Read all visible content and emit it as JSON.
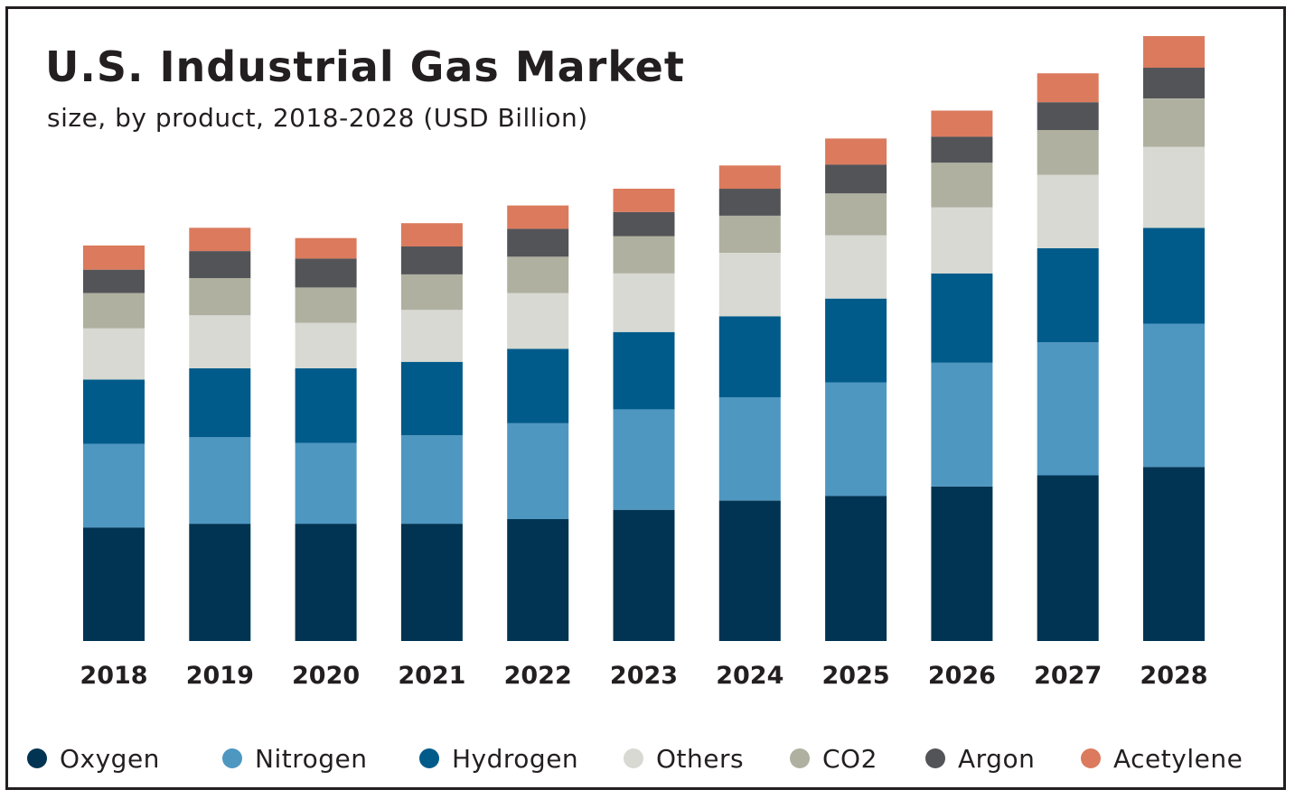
{
  "chart_data": {
    "type": "bar",
    "stacked": true,
    "title": "U.S. Industrial Gas Market",
    "subtitle": "size, by product, 2018-2028 (USD Billion)",
    "categories": [
      "2018",
      "2019",
      "2020",
      "2021",
      "2022",
      "2023",
      "2024",
      "2025",
      "2026",
      "2027",
      "2028"
    ],
    "series": [
      {
        "name": "Oxygen",
        "color": "#003452",
        "values": [
          12.2,
          12.6,
          12.6,
          12.6,
          13.1,
          14.1,
          15.1,
          15.6,
          16.6,
          17.8,
          18.7
        ]
      },
      {
        "name": "Nitrogen",
        "color": "#4e97c1",
        "values": [
          9.0,
          9.3,
          8.7,
          9.5,
          10.3,
          10.8,
          11.1,
          12.2,
          13.3,
          14.3,
          15.4
        ]
      },
      {
        "name": "Hydrogen",
        "color": "#005b8a",
        "values": [
          6.9,
          7.4,
          8.0,
          7.9,
          8.0,
          8.3,
          8.7,
          9.0,
          9.6,
          10.1,
          10.3
        ]
      },
      {
        "name": "Others",
        "color": "#d7d9d2",
        "values": [
          5.5,
          5.7,
          4.9,
          5.6,
          6.0,
          6.3,
          6.8,
          6.8,
          7.1,
          7.9,
          8.7
        ]
      },
      {
        "name": "CO2",
        "color": "#afb09f",
        "values": [
          3.8,
          4.0,
          3.8,
          3.8,
          3.9,
          4.0,
          4.0,
          4.5,
          4.8,
          4.8,
          5.2
        ]
      },
      {
        "name": "Argon",
        "color": "#535458",
        "values": [
          2.5,
          2.9,
          3.1,
          3.0,
          3.0,
          2.6,
          2.9,
          3.1,
          2.8,
          3.0,
          3.3
        ]
      },
      {
        "name": "Acetylene",
        "color": "#db7a5d",
        "values": [
          2.6,
          2.5,
          2.2,
          2.5,
          2.5,
          2.5,
          2.5,
          2.8,
          2.8,
          3.1,
          3.4
        ]
      }
    ],
    "ylim": [
      0,
      65
    ],
    "grid": false,
    "legend_position": "bottom",
    "xlabel": "",
    "ylabel": ""
  }
}
